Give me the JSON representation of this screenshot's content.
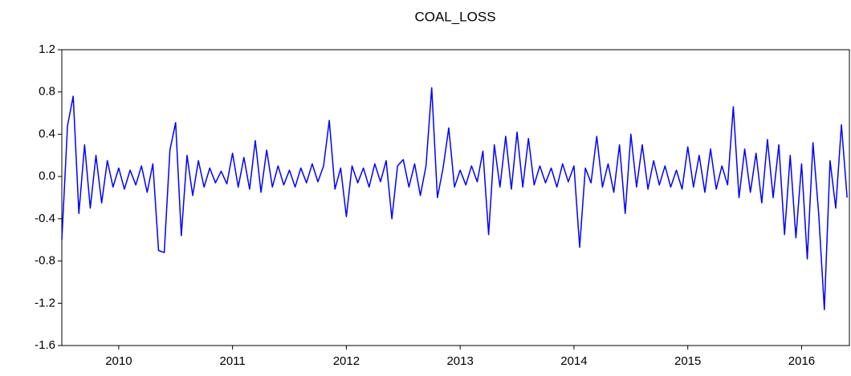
{
  "chart_data": {
    "type": "line",
    "title": "COAL_LOSS",
    "x": [
      2010.0,
      2010.05,
      2010.1,
      2010.15,
      2010.2,
      2010.25,
      2010.3,
      2010.35,
      2010.4,
      2010.45,
      2010.5,
      2010.55,
      2010.6,
      2010.65,
      2010.7,
      2010.75,
      2010.8,
      2010.85,
      2010.9,
      2010.95,
      2011.0,
      2011.05,
      2011.1,
      2011.15,
      2011.2,
      2011.25,
      2011.3,
      2011.35,
      2011.4,
      2011.45,
      2011.5,
      2011.55,
      2011.6,
      2011.65,
      2011.7,
      2011.75,
      2011.8,
      2011.85,
      2011.9,
      2011.95,
      2012.0,
      2012.05,
      2012.1,
      2012.15,
      2012.2,
      2012.25,
      2012.3,
      2012.35,
      2012.4,
      2012.45,
      2012.5,
      2012.55,
      2012.6,
      2012.65,
      2012.7,
      2012.75,
      2012.8,
      2012.85,
      2012.9,
      2012.95,
      2013.0,
      2013.05,
      2013.1,
      2013.15,
      2013.2,
      2013.25,
      2013.3,
      2013.35,
      2013.4,
      2013.45,
      2013.5,
      2013.55,
      2013.6,
      2013.65,
      2013.7,
      2013.75,
      2013.8,
      2013.85,
      2013.9,
      2013.95,
      2014.0,
      2014.05,
      2014.1,
      2014.15,
      2014.2,
      2014.25,
      2014.3,
      2014.35,
      2014.4,
      2014.45,
      2014.5,
      2014.55,
      2014.6,
      2014.65,
      2014.7,
      2014.75,
      2014.8,
      2014.85,
      2014.9,
      2014.95,
      2015.0,
      2015.05,
      2015.1,
      2015.15,
      2015.2,
      2015.25,
      2015.3,
      2015.35,
      2015.4,
      2015.45,
      2015.5,
      2015.55,
      2015.6,
      2015.65,
      2015.7,
      2015.75,
      2015.8,
      2015.85,
      2015.9,
      2015.95,
      2016.0,
      2016.05,
      2016.1,
      2016.15,
      2016.2,
      2016.25,
      2016.3,
      2016.35,
      2016.4,
      2016.45,
      2016.5,
      2016.55,
      2016.6,
      2016.65,
      2016.7,
      2016.75,
      2016.8,
      2016.85,
      2016.9
    ],
    "series": [
      {
        "name": "COAL_LOSS",
        "color": "#0000ff",
        "values": [
          -0.6,
          0.48,
          0.76,
          -0.35,
          0.3,
          -0.3,
          0.2,
          -0.25,
          0.15,
          -0.1,
          0.08,
          -0.12,
          0.06,
          -0.08,
          0.1,
          -0.15,
          0.12,
          -0.7,
          -0.72,
          0.25,
          0.51,
          -0.56,
          0.2,
          -0.18,
          0.15,
          -0.1,
          0.08,
          -0.06,
          0.05,
          -0.07,
          0.22,
          -0.1,
          0.18,
          -0.12,
          0.34,
          -0.15,
          0.25,
          -0.1,
          0.1,
          -0.08,
          0.06,
          -0.1,
          0.08,
          -0.06,
          0.12,
          -0.05,
          0.1,
          0.53,
          -0.12,
          0.08,
          -0.38,
          0.1,
          -0.06,
          0.08,
          -0.1,
          0.12,
          -0.05,
          0.15,
          -0.4,
          0.1,
          0.16,
          -0.1,
          0.12,
          -0.18,
          0.1,
          0.84,
          -0.2,
          0.08,
          0.46,
          -0.1,
          0.06,
          -0.08,
          0.1,
          -0.05,
          0.24,
          -0.55,
          0.3,
          -0.1,
          0.38,
          -0.12,
          0.42,
          -0.1,
          0.36,
          -0.08,
          0.1,
          -0.06,
          0.08,
          -0.1,
          0.12,
          -0.05,
          0.1,
          -0.67,
          0.08,
          -0.06,
          0.38,
          -0.1,
          0.12,
          -0.15,
          0.3,
          -0.35,
          0.4,
          -0.1,
          0.3,
          -0.12,
          0.15,
          -0.08,
          0.1,
          -0.1,
          0.06,
          -0.12,
          0.28,
          -0.1,
          0.2,
          -0.15,
          0.26,
          -0.12,
          0.1,
          -0.08,
          0.66,
          -0.2,
          0.26,
          -0.15,
          0.22,
          -0.25,
          0.35,
          -0.2,
          0.3,
          -0.55,
          0.2,
          -0.58,
          0.12,
          -0.78,
          0.32,
          -0.35,
          -1.26,
          0.15,
          -0.3,
          0.49,
          -0.2
        ]
      }
    ],
    "xlim": [
      2010,
      2016.92
    ],
    "xticks": [
      {
        "value": 2010.5,
        "label": "2010"
      },
      {
        "value": 2011.5,
        "label": "2011"
      },
      {
        "value": 2012.5,
        "label": "2012"
      },
      {
        "value": 2013.5,
        "label": "2013"
      },
      {
        "value": 2014.5,
        "label": "2014"
      },
      {
        "value": 2015.5,
        "label": "2015"
      },
      {
        "value": 2016.5,
        "label": "2016"
      }
    ],
    "ylim": [
      -1.6,
      1.2
    ],
    "yticks": [
      -1.6,
      -1.2,
      -0.8,
      -0.4,
      {
        "value": 0,
        "label": "0.0"
      },
      0.4,
      0.8,
      1.2
    ],
    "grid": false
  }
}
